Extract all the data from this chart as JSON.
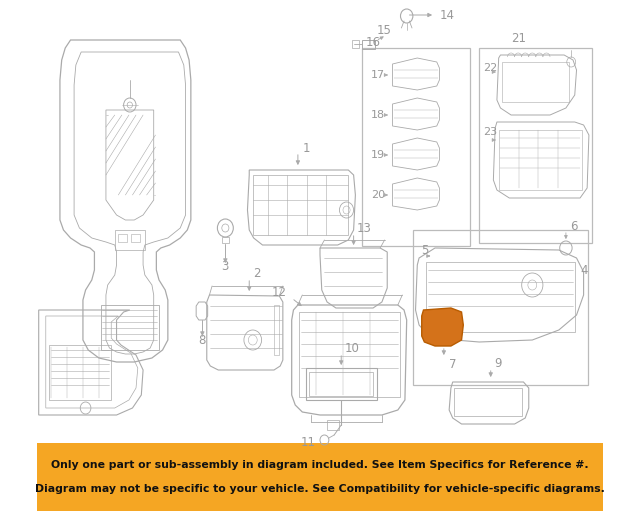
{
  "fig_width": 6.4,
  "fig_height": 5.11,
  "dpi": 100,
  "bg_color": "#ffffff",
  "banner_color": "#f5a623",
  "banner_text_line1": "Only one part or sub-assembly in diagram included. See Item Specifics for Reference #.",
  "banner_text_line2": "Diagram may not be specific to your vehicle. See Compatibility for vehicle-specific diagrams.",
  "banner_text_color": "#111111",
  "line_color": "#aaaaaa",
  "label_color": "#999999",
  "highlight_color": "#d4721a",
  "banner_fontsize": 7.8,
  "label_fontsize": 8.5
}
